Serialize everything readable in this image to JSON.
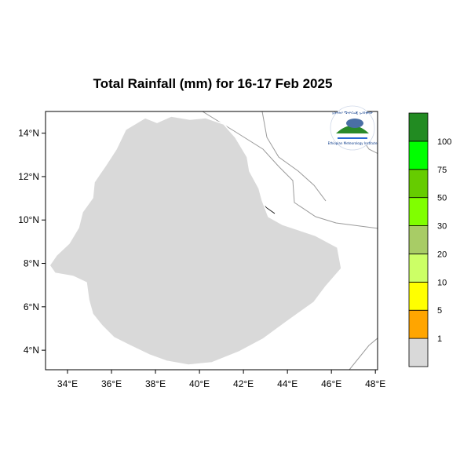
{
  "title": "Total Rainfall (mm) for 16-17 Feb 2025",
  "map": {
    "lon_range": [
      33,
      48.1
    ],
    "lat_range": [
      3.1,
      15
    ],
    "x_ticks": [
      {
        "lon": 34,
        "label": "34°E"
      },
      {
        "lon": 36,
        "label": "36°E"
      },
      {
        "lon": 38,
        "label": "38°E"
      },
      {
        "lon": 40,
        "label": "40°E"
      },
      {
        "lon": 42,
        "label": "42°E"
      },
      {
        "lon": 44,
        "label": "44°E"
      },
      {
        "lon": 46,
        "label": "46°E"
      },
      {
        "lon": 48,
        "label": "48°E"
      }
    ],
    "y_ticks": [
      {
        "lat": 4,
        "label": "4°N"
      },
      {
        "lat": 6,
        "label": "6°N"
      },
      {
        "lat": 8,
        "label": "8°N"
      },
      {
        "lat": 10,
        "label": "10°N"
      },
      {
        "lat": 12,
        "label": "12°N"
      },
      {
        "lat": 14,
        "label": "14°N"
      }
    ],
    "land_color": "#d9d9d9",
    "boundary_color": "#000000"
  },
  "legend": {
    "thresholds": [
      "1",
      "5",
      "10",
      "20",
      "30",
      "50",
      "75",
      "100"
    ],
    "colors": [
      "#d9d9d9",
      "#ffa500",
      "#ffff00",
      "#ccff66",
      "#a8cc66",
      "#80ff00",
      "#66cc00",
      "#00ff00",
      "#228b22"
    ]
  },
  "logo": {
    "title": "ኢትዮጵያ ሜትዮሮሎጂ ኢንስቲትዩት",
    "subtitle": "Ethiopian Meteorology Institute"
  }
}
